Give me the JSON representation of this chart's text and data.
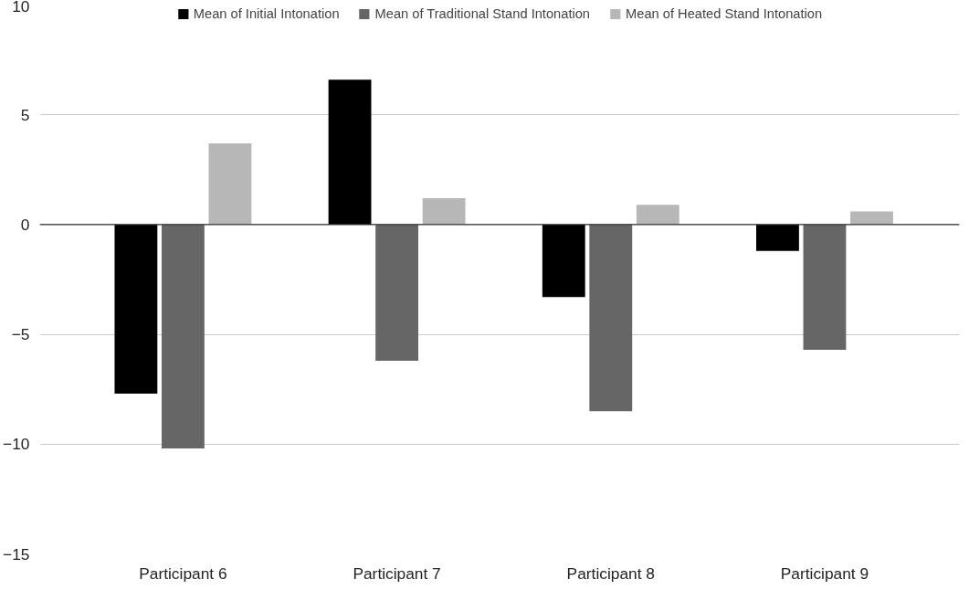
{
  "chart_data": {
    "type": "bar",
    "categories": [
      "Participant 6",
      "Participant 7",
      "Participant 8",
      "Participant 9"
    ],
    "series": [
      {
        "name": "Mean of Initial Intonation",
        "color": "#000000",
        "values": [
          -7.7,
          6.6,
          -3.3,
          -1.2
        ]
      },
      {
        "name": "Mean of Traditional Stand Intonation",
        "color": "#666666",
        "values": [
          -10.2,
          -6.2,
          -8.5,
          -5.7
        ]
      },
      {
        "name": "Mean of Heated Stand Intonation",
        "color": "#b7b7b7",
        "values": [
          3.7,
          1.2,
          0.9,
          0.6
        ]
      }
    ],
    "ylim": [
      -15,
      10
    ],
    "yticks": [
      -15,
      -10,
      -5,
      0,
      5,
      10
    ],
    "ref_lines": [
      {
        "axis": "y",
        "value": 0,
        "label": null,
        "color": "#333333"
      }
    ],
    "grid": "y",
    "legend": "top"
  }
}
